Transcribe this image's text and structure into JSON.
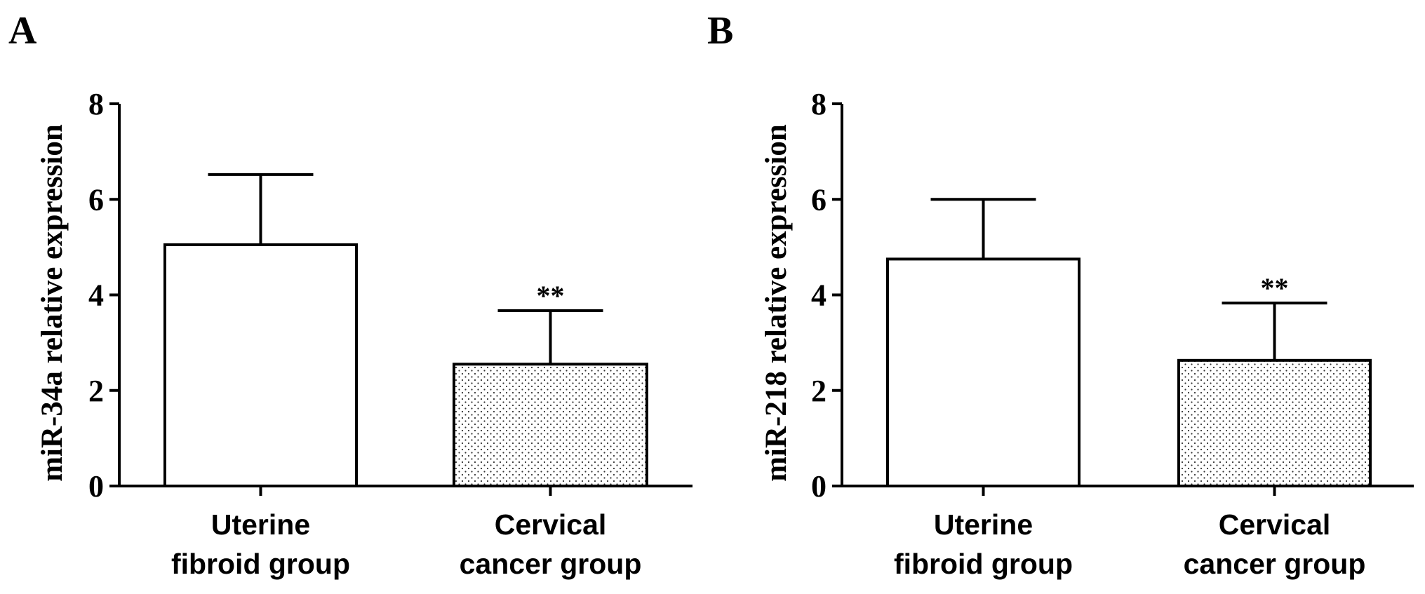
{
  "colors": {
    "axis": "#000000",
    "bar_fill_plain": "#ffffff",
    "bar_fill_dotted": "#f2f2f2",
    "dot": "#333333"
  },
  "chart_data": [
    {
      "panel_label": "A",
      "type": "bar",
      "ylabel": "miR-34a relative expression",
      "ylim": [
        0,
        8
      ],
      "yticks": [
        "0",
        "2",
        "4",
        "6",
        "8"
      ],
      "categories": [
        {
          "line1": "Uterine",
          "line2": "fibroid group",
          "value": 5.05,
          "error": 1.47,
          "fill": "plain",
          "significance": ""
        },
        {
          "line1": "Cervical",
          "line2": "cancer group",
          "value": 2.55,
          "error": 1.12,
          "fill": "dotted",
          "significance": "**"
        }
      ]
    },
    {
      "panel_label": "B",
      "type": "bar",
      "ylabel": "miR-218 relative expression",
      "ylim": [
        0,
        8
      ],
      "yticks": [
        "0",
        "2",
        "4",
        "6",
        "8"
      ],
      "categories": [
        {
          "line1": "Uterine",
          "line2": "fibroid group",
          "value": 4.75,
          "error": 1.25,
          "fill": "plain",
          "significance": ""
        },
        {
          "line1": "Cervical",
          "line2": "cancer group",
          "value": 2.63,
          "error": 1.2,
          "fill": "dotted",
          "significance": "**"
        }
      ]
    }
  ]
}
